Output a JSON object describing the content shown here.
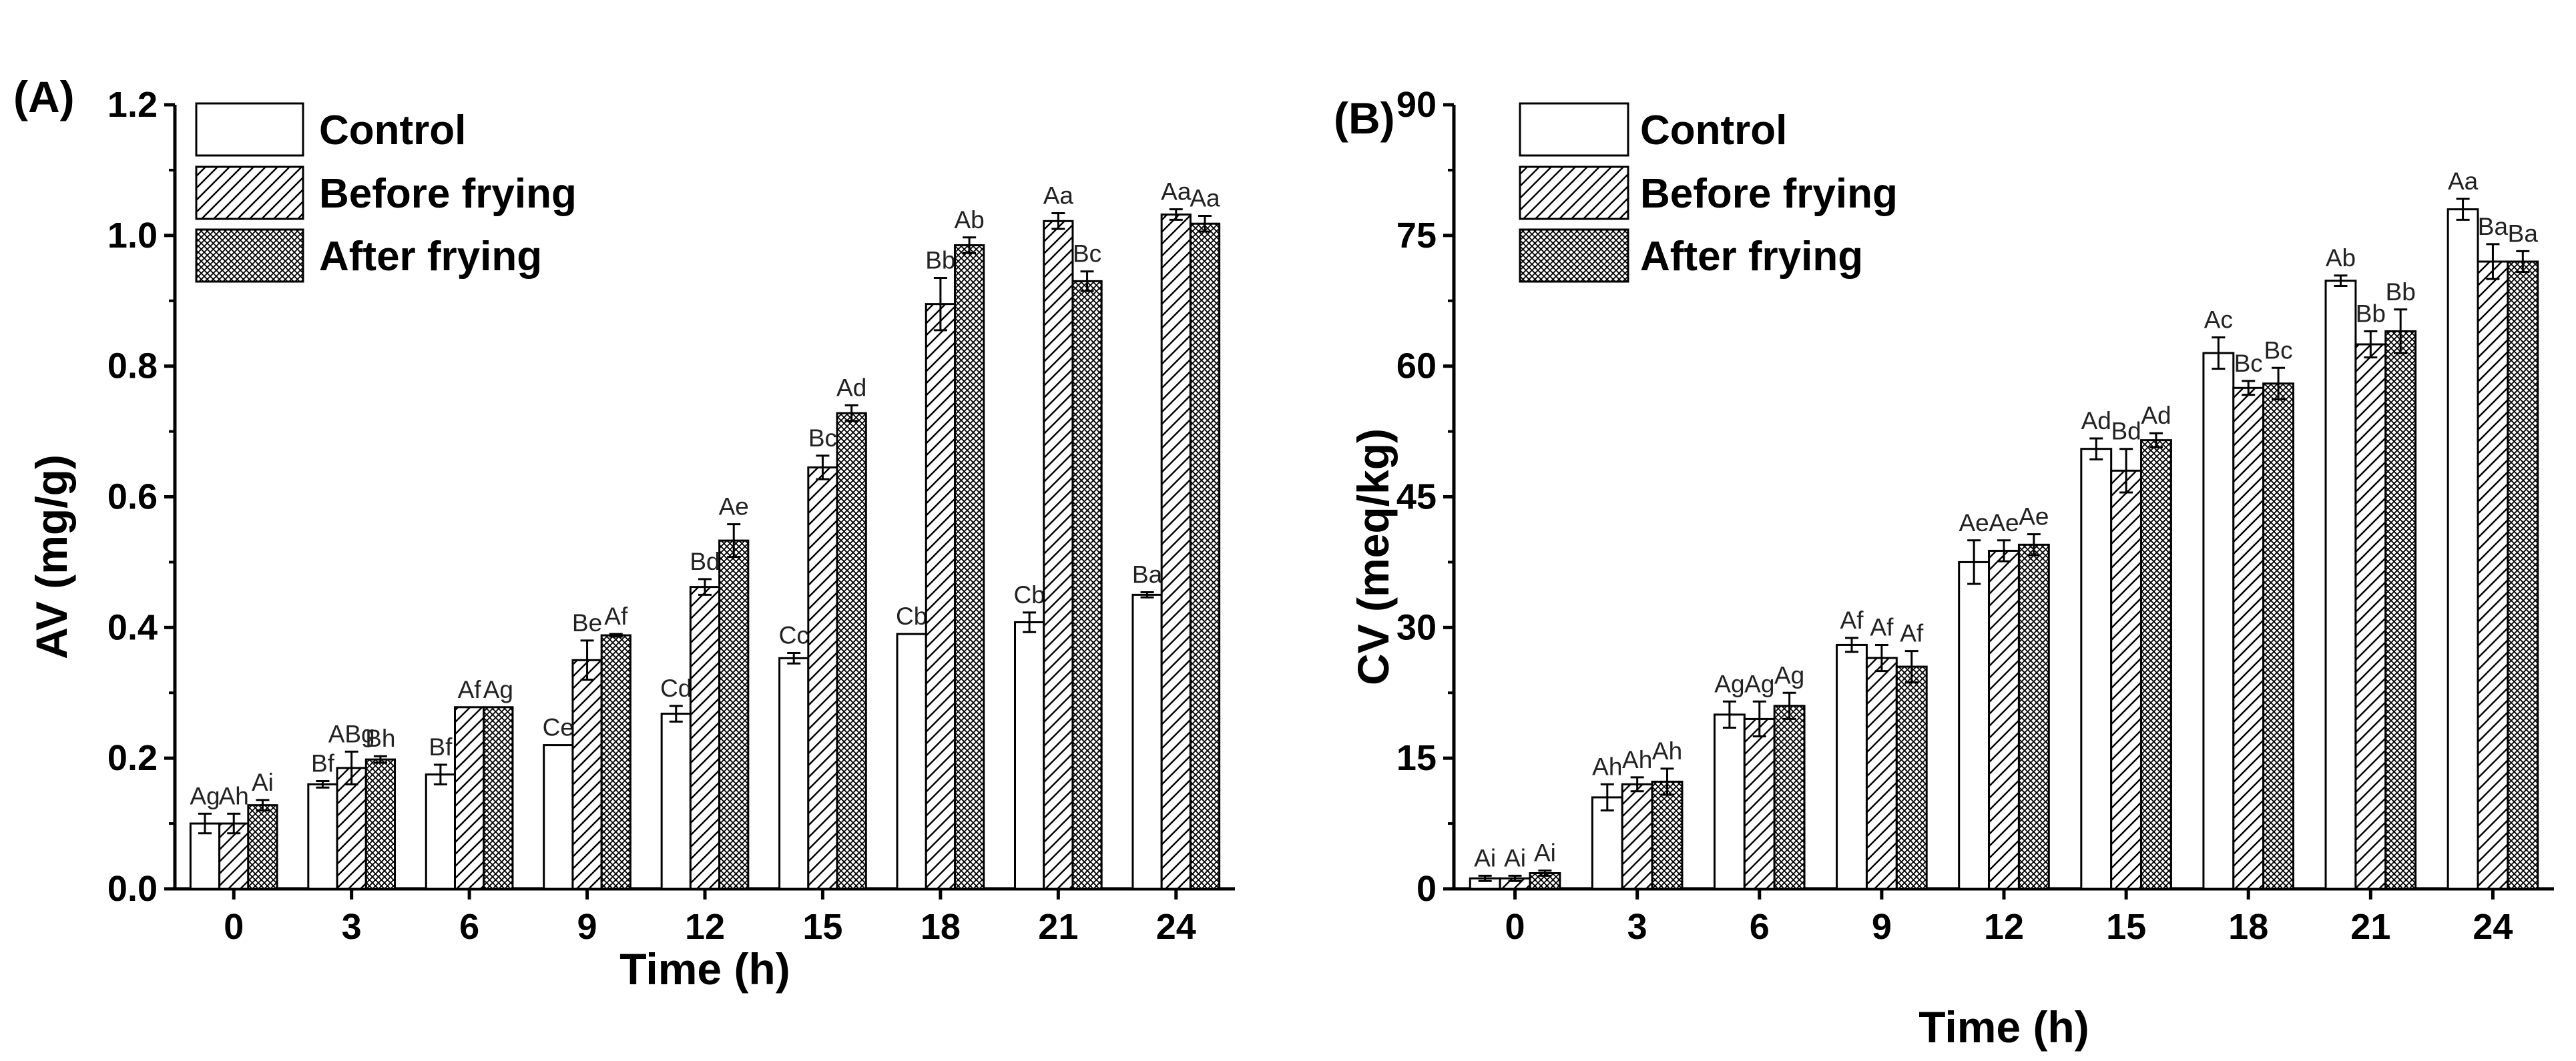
{
  "chart_data": [
    {
      "type": "bar",
      "panel_label": "(A)",
      "xlabel": "Time (h)",
      "ylabel": "AV (mg/g)",
      "ylim": [
        0,
        1.2
      ],
      "yticks": [
        "0.0",
        "0.2",
        "0.4",
        "0.6",
        "0.8",
        "1.0",
        "1.2"
      ],
      "categories": [
        "0",
        "3",
        "6",
        "9",
        "12",
        "15",
        "18",
        "21",
        "24"
      ],
      "legend": [
        "Control",
        "Before frying",
        "After frying"
      ],
      "series": [
        {
          "name": "Control",
          "values": [
            0.1,
            0.16,
            0.175,
            0.22,
            0.268,
            0.353,
            0.39,
            0.408,
            0.45
          ],
          "errors": [
            0.015,
            0.005,
            0.015,
            0.0,
            0.012,
            0.008,
            0.0,
            0.015,
            0.004
          ],
          "labels": [
            "Ag",
            "Bf",
            "Bf",
            "Ce",
            "Cd",
            "Cc",
            "Cb",
            "Cb",
            "Ba"
          ]
        },
        {
          "name": "Before frying",
          "values": [
            0.1,
            0.185,
            0.278,
            0.35,
            0.462,
            0.645,
            0.895,
            1.022,
            1.032
          ],
          "errors": [
            0.015,
            0.025,
            0.0,
            0.03,
            0.012,
            0.018,
            0.04,
            0.012,
            0.008
          ],
          "labels": [
            "Ah",
            "ABg",
            "Af",
            "Be",
            "Bd",
            "Bc",
            "Bb",
            "Aa",
            "Aa"
          ]
        },
        {
          "name": "After frying",
          "values": [
            0.128,
            0.198,
            0.278,
            0.388,
            0.533,
            0.728,
            0.985,
            0.93,
            1.018
          ],
          "errors": [
            0.008,
            0.005,
            0.0,
            0.002,
            0.025,
            0.012,
            0.012,
            0.015,
            0.012
          ],
          "labels": [
            "Ai",
            "Bh",
            "Ag",
            "Af",
            "Ae",
            "Ad",
            "Ab",
            "Bc",
            "Aa"
          ]
        }
      ]
    },
    {
      "type": "bar",
      "panel_label": "(B)",
      "xlabel": "Time (h)",
      "ylabel": "CV (meq/kg)",
      "ylim": [
        0,
        90
      ],
      "yticks": [
        "0",
        "15",
        "30",
        "45",
        "60",
        "75",
        "90"
      ],
      "categories": [
        "0",
        "3",
        "6",
        "9",
        "12",
        "15",
        "18",
        "21",
        "24"
      ],
      "legend": [
        "Control",
        "Before frying",
        "After frying"
      ],
      "series": [
        {
          "name": "Control",
          "values": [
            1.2,
            10.5,
            20.0,
            28.0,
            37.5,
            50.5,
            61.5,
            69.8,
            78.0
          ],
          "errors": [
            0.3,
            1.5,
            1.5,
            0.8,
            2.5,
            1.2,
            1.8,
            0.6,
            1.2
          ],
          "labels": [
            "Ai",
            "Ah",
            "Ag",
            "Af",
            "Ae",
            "Ad",
            "Ac",
            "Ab",
            "Aa"
          ]
        },
        {
          "name": "Before frying",
          "values": [
            1.2,
            12.0,
            19.5,
            26.5,
            38.8,
            48.0,
            57.5,
            62.5,
            72.0
          ],
          "errors": [
            0.3,
            0.8,
            2.0,
            1.5,
            1.2,
            2.5,
            0.8,
            1.5,
            2.0
          ],
          "labels": [
            "Ai",
            "Ah",
            "Ag",
            "Af",
            "Ae",
            "Bd",
            "Bc",
            "Bb",
            "Ba"
          ]
        },
        {
          "name": "After frying",
          "values": [
            1.8,
            12.3,
            21.0,
            25.5,
            39.5,
            51.5,
            58.0,
            64.0,
            72.0
          ],
          "errors": [
            0.3,
            1.5,
            1.5,
            1.8,
            1.2,
            0.8,
            1.8,
            2.5,
            1.2
          ],
          "labels": [
            "Ai",
            "Ah",
            "Ag",
            "Af",
            "Ae",
            "Ad",
            "Bc",
            "Bb",
            "Ba"
          ]
        }
      ]
    }
  ]
}
